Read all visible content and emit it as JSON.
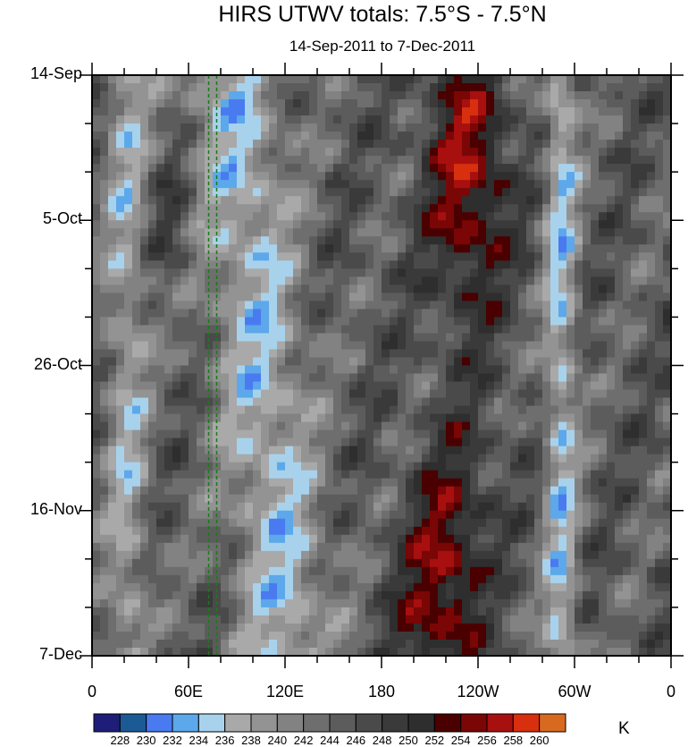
{
  "chart_data": {
    "type": "heatmap",
    "title": "HIRS UTWV totals: 7.5°S - 7.5°N",
    "subtitle": "14-Sep-2011 to 7-Dec-2011",
    "y_ticks": [
      "14-Sep",
      "5-Oct",
      "26-Oct",
      "16-Nov",
      "7-Dec"
    ],
    "x_ticks": [
      "0",
      "60E",
      "120E",
      "180",
      "120W",
      "60W",
      "0"
    ],
    "x_range": [
      0,
      360
    ],
    "y_range": [
      "14-Sep-2011",
      "7-Dec-2011"
    ],
    "colorbar": {
      "levels": [
        "228",
        "230",
        "232",
        "234",
        "236",
        "238",
        "240",
        "242",
        "244",
        "246",
        "248",
        "250",
        "252",
        "254",
        "256",
        "258",
        "260"
      ],
      "colors": [
        "#1e1e78",
        "#1c5a96",
        "#4a7af0",
        "#5ca8ea",
        "#a8d2ec",
        "#a9a9a9",
        "#939393",
        "#828282",
        "#6e6e6e",
        "#5c5c5c",
        "#4a4a4a",
        "#3a3a3a",
        "#2e2e2e",
        "#4a0000",
        "#7a0606",
        "#a81010",
        "#d8300e",
        "#d86a20"
      ],
      "units": "K"
    },
    "guide_lines_lon": [
      72.5,
      77.5
    ],
    "guide_line_color": "#1a7a1a"
  }
}
